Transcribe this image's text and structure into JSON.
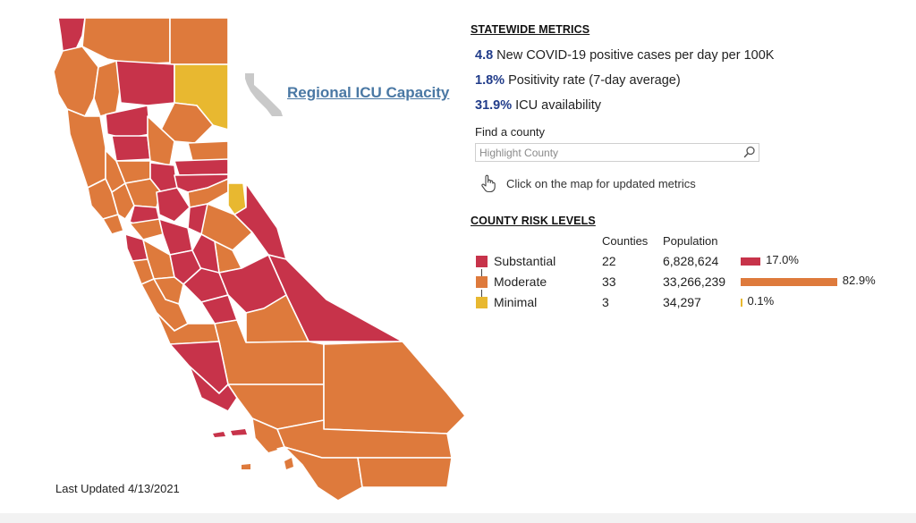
{
  "map": {
    "link_text": "Regional ICU Capacity",
    "last_updated": "Last Updated 4/13/2021",
    "colors": {
      "substantial": "#c7334a",
      "moderate": "#de7a3c",
      "minimal": "#e8b830",
      "minimap": "#c9c9c9"
    }
  },
  "statewide": {
    "title": "STATEWIDE METRICS",
    "metrics": [
      {
        "value": "4.8",
        "label": "New COVID-19 positive cases per day per 100K"
      },
      {
        "value": "1.8%",
        "label": "Positivity rate (7-day average)"
      },
      {
        "value": "31.9%",
        "label": "ICU availability"
      }
    ]
  },
  "find_county": {
    "label": "Find a county",
    "placeholder": "Highlight County",
    "hint": "Click on the map for updated metrics"
  },
  "risk_levels": {
    "title": "COUNTY RISK LEVELS",
    "columns": [
      "Counties",
      "Population"
    ],
    "rows": [
      {
        "name": "Substantial",
        "counties": "22",
        "population": "6,828,624",
        "percent": "17.0%",
        "share": 17.0,
        "color": "#c7334a"
      },
      {
        "name": "Moderate",
        "counties": "33",
        "population": "33,266,239",
        "percent": "82.9%",
        "share": 82.9,
        "color": "#de7a3c"
      },
      {
        "name": "Minimal",
        "counties": "3",
        "population": "34,297",
        "percent": "0.1%",
        "share": 0.1,
        "color": "#e8b830"
      }
    ]
  }
}
